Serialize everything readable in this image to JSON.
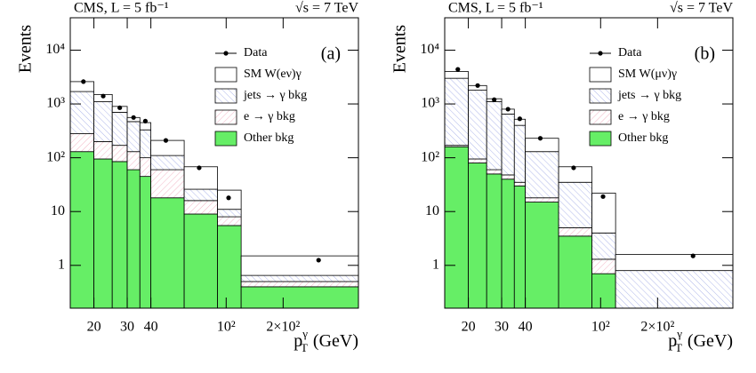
{
  "chart_data": [
    {
      "type": "histogram",
      "title": "CMS, L = 5 fb⁻¹",
      "energy": "√s = 7 TeV",
      "annotation": "(a)",
      "ylabel": "Events",
      "xlabel": {
        "base": "p",
        "sub": "T",
        "sup": "γ",
        "unit": "(GeV)"
      },
      "log_x": true,
      "log_y": true,
      "xlim": [
        15,
        500
      ],
      "ylim": [
        0.16,
        40000
      ],
      "xticks": [
        20,
        30,
        40,
        {
          "value": 100,
          "label": "10²"
        },
        {
          "value": 200,
          "label": "2×10²"
        }
      ],
      "yticks": [
        1,
        10,
        {
          "value": 100,
          "label": "10²"
        },
        {
          "value": 1000,
          "label": "10³"
        },
        {
          "value": 10000,
          "label": "10⁴"
        }
      ],
      "bins": [
        15,
        20,
        25,
        30,
        35,
        40,
        60,
        90,
        120,
        500
      ],
      "series": [
        {
          "name": "Other bkg",
          "color": "#66ee66",
          "fill_style": "solid",
          "values": [
            130,
            95,
            85,
            60,
            45,
            18,
            9,
            5.5,
            0.4
          ]
        },
        {
          "name": "e → γ bkg",
          "color": "#f2b6c6",
          "fill_style": "hatch",
          "values": [
            150,
            105,
            85,
            70,
            55,
            42,
            7,
            2.5,
            0.1
          ]
        },
        {
          "name": "jets → γ bkg",
          "color": "#b0b8ea",
          "fill_style": "hatch",
          "values": [
            1420,
            900,
            530,
            340,
            230,
            50,
            10,
            3,
            0.15
          ]
        },
        {
          "name": "SM W(eν)γ",
          "color": "#ffffff",
          "fill_style": "solid",
          "values": [
            900,
            400,
            200,
            90,
            120,
            100,
            42,
            14,
            0.85
          ]
        }
      ],
      "data": {
        "name": "Data",
        "color": "#000000",
        "x": [
          17.6,
          22.4,
          27.4,
          32.4,
          37.4,
          48,
          72,
          103,
          308
        ],
        "values": [
          2600,
          1400,
          850,
          560,
          480,
          210,
          65,
          18,
          1.25
        ]
      },
      "legend": "upper right"
    },
    {
      "type": "histogram",
      "title": "CMS, L = 5 fb⁻¹",
      "energy": "√s = 7 TeV",
      "annotation": "(b)",
      "ylabel": "Events",
      "xlabel": {
        "base": "p",
        "sub": "T",
        "sup": "γ",
        "unit": "(GeV)"
      },
      "log_x": true,
      "log_y": true,
      "xlim": [
        15,
        500
      ],
      "ylim": [
        0.16,
        40000
      ],
      "xticks": [
        20,
        30,
        40,
        {
          "value": 100,
          "label": "10²"
        },
        {
          "value": 200,
          "label": "2×10²"
        }
      ],
      "yticks": [
        1,
        10,
        {
          "value": 100,
          "label": "10²"
        },
        {
          "value": 1000,
          "label": "10³"
        },
        {
          "value": 10000,
          "label": "10⁴"
        }
      ],
      "bins": [
        15,
        20,
        25,
        30,
        35,
        40,
        60,
        90,
        120,
        500
      ],
      "series": [
        {
          "name": "Other bkg",
          "color": "#66ee66",
          "fill_style": "solid",
          "values": [
            160,
            80,
            50,
            40,
            30,
            15,
            3.5,
            0.7,
            0
          ]
        },
        {
          "name": "e → γ bkg",
          "color": "#f2b6c6",
          "fill_style": "hatch",
          "values": [
            10,
            15,
            10,
            8,
            5,
            3,
            1.5,
            0.6,
            0
          ]
        },
        {
          "name": "jets → γ bkg",
          "color": "#b0b8ea",
          "fill_style": "hatch",
          "values": [
            2830,
            1705,
            1040,
            602,
            365,
            112,
            30,
            2.7,
            0.8
          ]
        },
        {
          "name": "SM W(μν)γ",
          "color": "#ffffff",
          "fill_style": "solid",
          "values": [
            1000,
            400,
            150,
            150,
            120,
            100,
            33,
            18,
            0.8
          ]
        }
      ],
      "data": {
        "name": "Data",
        "color": "#000000",
        "x": [
          17.6,
          22.4,
          27.4,
          32.4,
          37.4,
          48,
          72,
          103,
          308
        ],
        "values": [
          4400,
          2200,
          1200,
          800,
          530,
          230,
          65,
          19,
          1.5
        ]
      },
      "legend": "upper right"
    }
  ]
}
